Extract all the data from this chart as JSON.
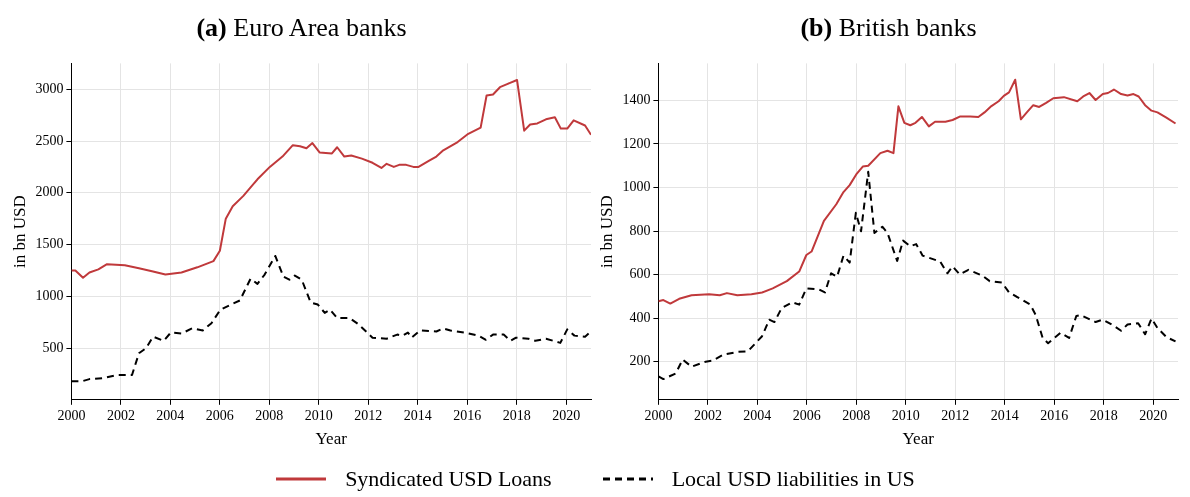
{
  "chart_data": [
    {
      "type": "line",
      "title": "(a) Euro Area banks",
      "xlabel": "Year",
      "ylabel": "in bn USD",
      "xlim": [
        2000,
        2021
      ],
      "xticks": [
        2000,
        2002,
        2004,
        2006,
        2008,
        2010,
        2012,
        2014,
        2016,
        2018,
        2020
      ],
      "ylim": [
        0,
        3250
      ],
      "yticks": [
        500,
        1000,
        1500,
        2000,
        2500,
        3000
      ],
      "grid": true,
      "legend": "bottom",
      "series": [
        {
          "name": "Syndicated USD Loans",
          "color": "#c0393b",
          "line_style": "solid",
          "x": [
            2000,
            2000.16,
            2000.47,
            2000.73,
            2001.09,
            2001.44,
            2002.16,
            2002.73,
            2003.3,
            2003.8,
            2004.45,
            2005.09,
            2005.74,
            2006.0,
            2006.24,
            2006.52,
            2006.95,
            2007.52,
            2008.02,
            2008.53,
            2008.95,
            2009.24,
            2009.5,
            2009.74,
            2010.03,
            2010.53,
            2010.74,
            2011.03,
            2011.31,
            2011.74,
            2012.17,
            2012.53,
            2012.74,
            2013.03,
            2013.25,
            2013.53,
            2013.82,
            2014.03,
            2014.46,
            2014.75,
            2015.03,
            2015.61,
            2016.04,
            2016.54,
            2016.78,
            2017.04,
            2017.32,
            2017.61,
            2018.01,
            2018.3,
            2018.54,
            2018.83,
            2019.18,
            2019.54,
            2019.78,
            2020.04,
            2020.3,
            2020.76,
            2021
          ],
          "values": [
            1250,
            1250,
            1180,
            1230,
            1260,
            1310,
            1300,
            1270,
            1240,
            1210,
            1230,
            1280,
            1340,
            1440,
            1750,
            1870,
            1970,
            2130,
            2250,
            2350,
            2460,
            2450,
            2430,
            2480,
            2390,
            2380,
            2440,
            2350,
            2360,
            2330,
            2290,
            2240,
            2280,
            2250,
            2270,
            2270,
            2250,
            2250,
            2310,
            2350,
            2410,
            2490,
            2570,
            2630,
            2940,
            2950,
            3020,
            3050,
            3090,
            2600,
            2660,
            2670,
            2710,
            2730,
            2620,
            2620,
            2700,
            2650,
            2560
          ]
        },
        {
          "name": "Local USD liabilities in US",
          "color": "#000000",
          "line_style": "dashed",
          "x": [
            2000,
            2000.44,
            2000.73,
            2001.3,
            2001.87,
            2002.45,
            2002.73,
            2003.02,
            2003.3,
            2003.73,
            2004.02,
            2004.45,
            2004.88,
            2005.31,
            2005.66,
            2006.02,
            2006.45,
            2006.81,
            2007.24,
            2007.52,
            2007.81,
            2008.24,
            2008.57,
            2008.81,
            2009.03,
            2009.31,
            2009.67,
            2009.96,
            2010.24,
            2010.46,
            2010.74,
            2011.24,
            2011.6,
            2012.17,
            2012.74,
            2013.17,
            2013.39,
            2013.6,
            2013.75,
            2014.1,
            2014.75,
            2015.03,
            2015.32,
            2015.89,
            2016.46,
            2016.75,
            2017.04,
            2017.47,
            2017.75,
            2017.97,
            2018.47,
            2018.75,
            2019.18,
            2019.76,
            2020.04,
            2020.33,
            2020.76,
            2021
          ],
          "values": [
            180,
            180,
            200,
            210,
            240,
            240,
            450,
            500,
            610,
            570,
            650,
            640,
            690,
            670,
            740,
            870,
            920,
            960,
            1170,
            1120,
            1210,
            1390,
            1190,
            1160,
            1200,
            1160,
            940,
            920,
            840,
            870,
            790,
            790,
            730,
            600,
            590,
            630,
            620,
            650,
            600,
            670,
            660,
            690,
            670,
            650,
            620,
            580,
            630,
            630,
            570,
            600,
            590,
            570,
            590,
            550,
            680,
            620,
            610,
            660
          ]
        }
      ]
    },
    {
      "type": "line",
      "title": "(b) British banks",
      "xlabel": "Year",
      "ylabel": "in bn USD",
      "xlim": [
        2000,
        2021
      ],
      "xticks": [
        2000,
        2002,
        2004,
        2006,
        2008,
        2010,
        2012,
        2014,
        2016,
        2018,
        2020
      ],
      "ylim": [
        25,
        1570
      ],
      "yticks": [
        200,
        400,
        600,
        800,
        1000,
        1200,
        1400
      ],
      "grid": true,
      "series": [
        {
          "color": "#c0393b",
          "line_style": "solid",
          "x": [
            2000,
            2000.2,
            2000.48,
            2000.84,
            2001.34,
            2002.05,
            2002.48,
            2002.77,
            2003.19,
            2003.76,
            2004.19,
            2004.62,
            2005.19,
            2005.69,
            2005.98,
            2006.19,
            2006.69,
            2007.19,
            2007.48,
            2007.73,
            2008.02,
            2008.26,
            2008.48,
            2008.97,
            2009.26,
            2009.5,
            2009.7,
            2009.94,
            2010.18,
            2010.39,
            2010.65,
            2010.93,
            2011.18,
            2011.6,
            2011.89,
            2012.18,
            2012.6,
            2012.93,
            2013.18,
            2013.46,
            2013.75,
            2013.96,
            2014.17,
            2014.42,
            2014.65,
            2014.89,
            2015.15,
            2015.39,
            2015.67,
            2015.96,
            2016.39,
            2016.93,
            2017.17,
            2017.42,
            2017.67,
            2017.96,
            2018.17,
            2018.41,
            2018.7,
            2018.96,
            2019.2,
            2019.41,
            2019.67,
            2019.93,
            2020.17,
            2020.53,
            2020.9
          ],
          "values": [
            478,
            483,
            467,
            489,
            505,
            510,
            505,
            515,
            505,
            510,
            518,
            537,
            570,
            614,
            690,
            706,
            847,
            923,
            979,
            1011,
            1064,
            1096,
            1100,
            1158,
            1169,
            1158,
            1373,
            1297,
            1286,
            1297,
            1324,
            1281,
            1302,
            1302,
            1310,
            1326,
            1326,
            1324,
            1345,
            1374,
            1396,
            1421,
            1437,
            1495,
            1313,
            1345,
            1378,
            1370,
            1389,
            1410,
            1415,
            1396,
            1418,
            1434,
            1402,
            1429,
            1434,
            1450,
            1429,
            1423,
            1429,
            1418,
            1378,
            1353,
            1345,
            1321,
            1294
          ]
        },
        {
          "color": "#000000",
          "line_style": "dashed",
          "x": [
            2000,
            2000.2,
            2000.7,
            2000.98,
            2001.34,
            2001.91,
            2002.2,
            2002.62,
            2003.19,
            2003.62,
            2004.19,
            2004.48,
            2004.69,
            2004.98,
            2005.41,
            2005.69,
            2005.98,
            2006.48,
            2006.73,
            2006.98,
            2007.22,
            2007.48,
            2007.73,
            2007.98,
            2008.19,
            2008.48,
            2008.73,
            2009.05,
            2009.26,
            2009.65,
            2009.89,
            2010.18,
            2010.42,
            2010.68,
            2011.39,
            2011.68,
            2011.89,
            2012.18,
            2012.53,
            2013.1,
            2013.39,
            2013.89,
            2014.17,
            2014.67,
            2015.03,
            2015.25,
            2015.53,
            2015.75,
            2016.25,
            2016.6,
            2016.89,
            2017.07,
            2017.67,
            2017.96,
            2018.39,
            2018.7,
            2018.96,
            2019.39,
            2019.67,
            2019.93,
            2020.17,
            2020.53,
            2020.9
          ],
          "values": [
            133,
            120,
            146,
            210,
            177,
            200,
            205,
            232,
            245,
            248,
            317,
            393,
            382,
            446,
            473,
            462,
            537,
            532,
            518,
            606,
            590,
            687,
            655,
            884,
            799,
            1072,
            791,
            820,
            791,
            663,
            756,
            730,
            740,
            687,
            660,
            606,
            638,
            601,
            622,
            595,
            570,
            563,
            518,
            486,
            462,
            414,
            309,
            285,
            333,
            309,
            410,
            414,
            382,
            393,
            366,
            342,
            371,
            377,
            326,
            398,
            355,
            313,
            293
          ]
        }
      ]
    }
  ]
}
